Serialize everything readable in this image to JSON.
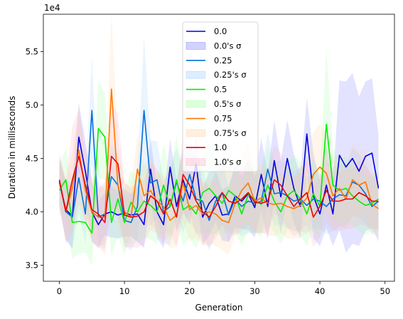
{
  "chart_data": {
    "type": "line",
    "title": "",
    "xlabel": "Generation",
    "ylabel": "Duration in milliseconds",
    "y_offset_label": "1e4",
    "xlim": [
      -2.45,
      51.45
    ],
    "ylim": [
      3.35,
      5.85
    ],
    "y_units_multiplier": 10000,
    "x_ticks": [
      0,
      10,
      20,
      30,
      40,
      50
    ],
    "x_tick_labels": [
      "0",
      "10",
      "20",
      "30",
      "40",
      "50"
    ],
    "y_ticks": [
      3.5,
      4.0,
      4.5,
      5.0,
      5.5
    ],
    "y_tick_labels": [
      "3.5",
      "4.0",
      "4.5",
      "5.0",
      "5.5"
    ],
    "legend_position": "top-center",
    "grid": false,
    "x": [
      0,
      1,
      2,
      3,
      4,
      5,
      6,
      7,
      8,
      9,
      10,
      11,
      12,
      13,
      14,
      15,
      16,
      17,
      18,
      19,
      20,
      21,
      22,
      23,
      24,
      25,
      26,
      27,
      28,
      29,
      30,
      31,
      32,
      33,
      34,
      35,
      36,
      37,
      38,
      39,
      40,
      41,
      42,
      43,
      44,
      45,
      46,
      47,
      48,
      49
    ],
    "series": [
      {
        "name": "0.0",
        "band_name": "0.0's σ",
        "color": "#0000dd",
        "band_color": "#7f7fff",
        "values": [
          4.28,
          4.02,
          3.96,
          4.7,
          4.38,
          4.0,
          3.88,
          3.98,
          4.0,
          3.97,
          3.99,
          3.97,
          3.98,
          3.88,
          4.4,
          4.0,
          3.88,
          4.42,
          4.05,
          4.3,
          4.12,
          4.45,
          3.95,
          4.08,
          4.15,
          3.97,
          3.98,
          4.15,
          4.1,
          4.17,
          4.04,
          4.35,
          4.05,
          4.48,
          4.14,
          4.5,
          4.22,
          4.05,
          4.73,
          4.15,
          3.98,
          4.25,
          3.98,
          4.53,
          4.42,
          4.5,
          4.38,
          4.52,
          4.55,
          4.22
        ],
        "band": [
          0.22,
          0.28,
          0.3,
          0.32,
          0.28,
          0.28,
          0.22,
          0.2,
          0.24,
          0.22,
          0.22,
          0.2,
          0.26,
          0.22,
          0.28,
          0.24,
          0.22,
          0.26,
          0.24,
          0.3,
          0.24,
          0.28,
          0.26,
          0.3,
          0.24,
          0.24,
          0.26,
          0.3,
          0.26,
          0.34,
          0.28,
          0.34,
          0.3,
          0.38,
          0.34,
          0.36,
          0.32,
          0.3,
          0.34,
          0.4,
          0.3,
          0.4,
          0.3,
          0.7,
          0.8,
          0.8,
          0.7,
          0.7,
          0.7,
          0.5
        ]
      },
      {
        "name": "0.25",
        "band_name": "0.25's σ",
        "color": "#0070dd",
        "band_color": "#9fcfff",
        "values": [
          4.28,
          4.0,
          3.95,
          4.32,
          3.98,
          4.95,
          3.95,
          3.98,
          4.33,
          4.25,
          3.92,
          3.9,
          4.05,
          4.95,
          4.27,
          4.3,
          4.0,
          4.05,
          4.28,
          4.1,
          4.35,
          4.12,
          4.1,
          3.92,
          4.1,
          4.18,
          3.97,
          4.12,
          4.05,
          4.1,
          4.08,
          4.1,
          4.4,
          4.17,
          4.18,
          4.15,
          4.1,
          4.12,
          4.06,
          4.12,
          4.1,
          4.05,
          4.12,
          4.16,
          4.15,
          4.28,
          4.25,
          4.17,
          4.05,
          4.1
        ],
        "band": [
          0.22,
          0.26,
          0.3,
          0.32,
          0.28,
          0.5,
          0.26,
          0.3,
          0.3,
          0.28,
          0.24,
          0.26,
          0.3,
          0.7,
          0.4,
          0.36,
          0.3,
          0.36,
          0.32,
          0.3,
          0.36,
          0.32,
          0.3,
          0.28,
          0.3,
          0.3,
          0.26,
          0.3,
          0.28,
          0.3,
          0.28,
          0.3,
          0.34,
          0.3,
          0.3,
          0.3,
          0.28,
          0.3,
          0.26,
          0.28,
          0.26,
          0.26,
          0.3,
          0.3,
          0.28,
          0.32,
          0.3,
          0.28,
          0.26,
          0.26
        ]
      },
      {
        "name": "0.5",
        "band_name": "0.5's σ",
        "color": "#00ee00",
        "band_color": "#9fff9f",
        "values": [
          4.2,
          4.3,
          3.9,
          3.91,
          3.9,
          3.8,
          4.78,
          4.7,
          3.9,
          4.12,
          3.9,
          4.09,
          4.0,
          4.1,
          4.06,
          4.0,
          4.25,
          4.05,
          4.3,
          4.02,
          4.06,
          3.98,
          4.18,
          4.22,
          4.15,
          4.08,
          4.2,
          4.15,
          3.98,
          4.16,
          4.12,
          4.07,
          4.25,
          4.1,
          4.0,
          4.15,
          4.2,
          4.12,
          3.98,
          4.17,
          4.05,
          4.82,
          4.25,
          4.2,
          4.22,
          4.15,
          4.1,
          4.06,
          4.08,
          4.12
        ],
        "band": [
          0.24,
          0.3,
          0.34,
          0.3,
          0.28,
          0.3,
          0.46,
          0.4,
          0.32,
          0.34,
          0.3,
          0.3,
          0.3,
          0.34,
          0.32,
          0.3,
          0.38,
          0.32,
          0.4,
          0.34,
          0.3,
          0.32,
          0.36,
          0.42,
          0.36,
          0.3,
          0.36,
          0.34,
          0.3,
          0.34,
          0.32,
          0.3,
          0.36,
          0.3,
          0.3,
          0.32,
          0.34,
          0.34,
          0.3,
          0.34,
          0.3,
          0.7,
          0.34,
          0.3,
          0.3,
          0.28,
          0.28,
          0.28,
          0.26,
          0.26
        ]
      },
      {
        "name": "0.75",
        "band_name": "0.75's σ",
        "color": "#ff7700",
        "band_color": "#ffd2a6",
        "values": [
          4.3,
          4.0,
          4.22,
          4.58,
          4.2,
          4.0,
          3.95,
          3.95,
          5.15,
          4.25,
          4.0,
          3.95,
          4.4,
          4.15,
          4.2,
          4.1,
          4.05,
          3.92,
          3.97,
          4.27,
          4.02,
          4.06,
          3.98,
          4.0,
          3.98,
          3.92,
          3.9,
          4.08,
          4.2,
          4.27,
          4.1,
          4.13,
          4.08,
          4.07,
          4.08,
          4.05,
          4.03,
          4.06,
          4.13,
          4.35,
          4.42,
          4.36,
          4.15,
          4.22,
          4.12,
          4.3,
          4.25,
          4.28,
          4.07,
          4.03
        ],
        "band": [
          0.22,
          0.28,
          0.34,
          0.38,
          0.3,
          0.26,
          0.28,
          0.3,
          0.7,
          0.4,
          0.28,
          0.26,
          0.34,
          0.3,
          0.32,
          0.28,
          0.3,
          0.26,
          0.3,
          0.34,
          0.3,
          0.3,
          0.3,
          0.3,
          0.3,
          0.28,
          0.3,
          0.3,
          0.32,
          0.4,
          0.3,
          0.32,
          0.3,
          0.3,
          0.28,
          0.3,
          0.28,
          0.3,
          0.34,
          0.4,
          0.4,
          0.36,
          0.32,
          0.34,
          0.3,
          0.34,
          0.32,
          0.3,
          0.28,
          0.26
        ]
      },
      {
        "name": "1.0",
        "band_name": "1.0's σ",
        "color": "#ee0000",
        "band_color": "#ffb3c1",
        "values": [
          4.3,
          4.0,
          4.3,
          4.52,
          4.25,
          4.02,
          3.98,
          3.9,
          4.52,
          4.45,
          3.97,
          3.95,
          3.96,
          4.0,
          4.15,
          4.1,
          3.98,
          4.12,
          3.95,
          4.35,
          4.25,
          4.1,
          4.0,
          3.95,
          4.05,
          4.18,
          4.1,
          4.08,
          4.12,
          4.18,
          4.09,
          4.08,
          4.1,
          4.3,
          4.25,
          4.15,
          4.05,
          4.12,
          4.18,
          3.95,
          4.05,
          4.2,
          4.1,
          4.1,
          4.12,
          4.12,
          4.18,
          4.15,
          4.1,
          4.1
        ],
        "band": [
          0.26,
          0.3,
          0.5,
          0.45,
          0.34,
          0.3,
          0.3,
          0.3,
          0.5,
          0.46,
          0.3,
          0.28,
          0.3,
          0.3,
          0.32,
          0.3,
          0.28,
          0.32,
          0.28,
          0.36,
          0.34,
          0.3,
          0.28,
          0.28,
          0.3,
          0.3,
          0.3,
          0.3,
          0.3,
          0.3,
          0.28,
          0.28,
          0.3,
          0.32,
          0.3,
          0.3,
          0.28,
          0.3,
          0.3,
          0.28,
          0.28,
          0.3,
          0.28,
          0.28,
          0.28,
          0.28,
          0.3,
          0.28,
          0.26,
          0.26
        ]
      }
    ]
  }
}
